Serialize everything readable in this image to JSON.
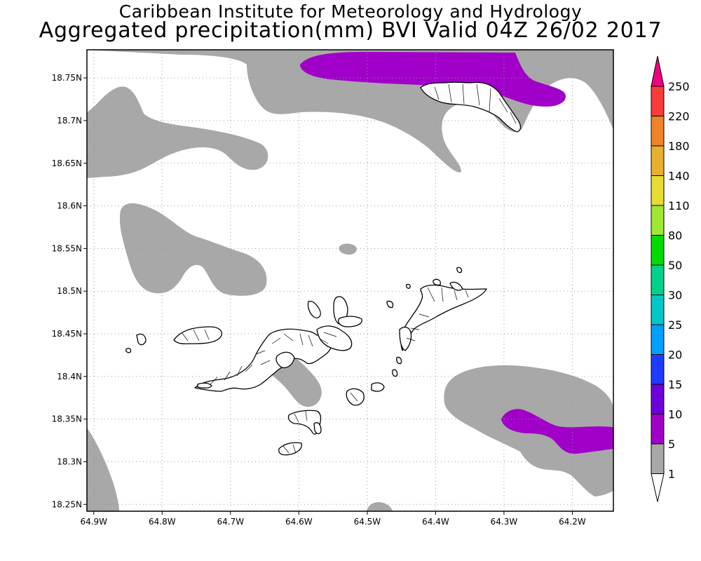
{
  "titles": {
    "line1": "Caribbean Institute for Meteorology and Hydrology",
    "line2": "Aggregated precipitation(mm) BVI Valid 04Z 26/02 2017"
  },
  "map": {
    "lon_range": [
      -64.91,
      -64.14
    ],
    "lat_range": [
      18.242,
      18.783
    ],
    "x_ticks": [
      "64.9W",
      "64.8W",
      "64.7W",
      "64.6W",
      "64.5W",
      "64.4W",
      "64.3W",
      "64.2W"
    ],
    "y_ticks": [
      "18.75N",
      "18.7N",
      "18.65N",
      "18.6N",
      "18.55N",
      "18.5N",
      "18.45N",
      "18.4N",
      "18.35N",
      "18.3N",
      "18.25N"
    ],
    "grid": true,
    "colors": {
      "rain_1_5": "#a8a8a8",
      "rain_5_10": "#a000c8",
      "land_outline": "#000000",
      "land_fill": "#ffffff",
      "grid": "#9a9a9a"
    }
  },
  "colorbar": {
    "labels": [
      "250",
      "220",
      "180",
      "140",
      "110",
      "80",
      "50",
      "30",
      "25",
      "20",
      "15",
      "10",
      "5",
      "1"
    ],
    "colors": [
      "#f00082",
      "#fa3c3c",
      "#f08228",
      "#e6af2d",
      "#e6dc32",
      "#a0e632",
      "#00dc00",
      "#00d28c",
      "#00c8c8",
      "#00a0ff",
      "#1e3cff",
      "#6e00dc",
      "#a000c8",
      "#a8a8a8",
      "#ffffff"
    ]
  }
}
